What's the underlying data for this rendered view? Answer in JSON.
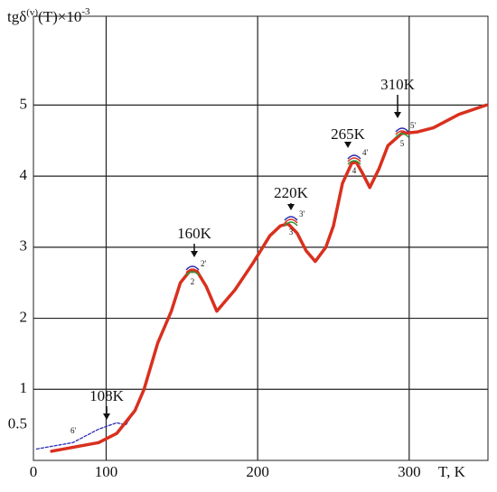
{
  "chart_data": {
    "type": "line",
    "y_label_parts": [
      "tgδ",
      "(v)",
      "(T)×10",
      "-3"
    ],
    "x_label": "T, K",
    "origin_label": "0",
    "xlim": [
      52,
      352
    ],
    "ylim": [
      0,
      6.25
    ],
    "xticks": [
      100,
      200,
      300
    ],
    "yticks": [
      0.5,
      1,
      2,
      3,
      4,
      5
    ],
    "ygrid": [
      1,
      2,
      3,
      4,
      5
    ],
    "grid": true,
    "series": [
      {
        "name": "tgδ",
        "color": "#d9301e",
        "style": "solid",
        "x": [
          64,
          95,
          107,
          119,
          125,
          134,
          143,
          149,
          155,
          160,
          166,
          173,
          185,
          197,
          208,
          215,
          220,
          226,
          232,
          238,
          245,
          250,
          256,
          262,
          265,
          269,
          274,
          280,
          286,
          295,
          305,
          316,
          333,
          351
        ],
        "values": [
          0.13,
          0.25,
          0.38,
          0.7,
          1.0,
          1.65,
          2.1,
          2.5,
          2.66,
          2.66,
          2.45,
          2.1,
          2.4,
          2.78,
          3.16,
          3.3,
          3.33,
          3.2,
          2.95,
          2.8,
          3.0,
          3.3,
          3.9,
          4.18,
          4.2,
          4.05,
          3.84,
          4.1,
          4.43,
          4.6,
          4.62,
          4.68,
          4.87,
          5.0
        ]
      },
      {
        "name": "6'",
        "color": "#2b2bb0",
        "style": "dashed",
        "x": [
          54,
          78,
          95,
          107,
          113,
          119
        ],
        "values": [
          0.16,
          0.25,
          0.44,
          0.53,
          0.5,
          0.7
        ]
      }
    ],
    "annotations": [
      "108K",
      "160K",
      "220K",
      "265K",
      "310K"
    ],
    "peak_labels": [
      "2'",
      "2",
      "3'",
      "3",
      "4'",
      "4",
      "5'",
      "5"
    ]
  }
}
